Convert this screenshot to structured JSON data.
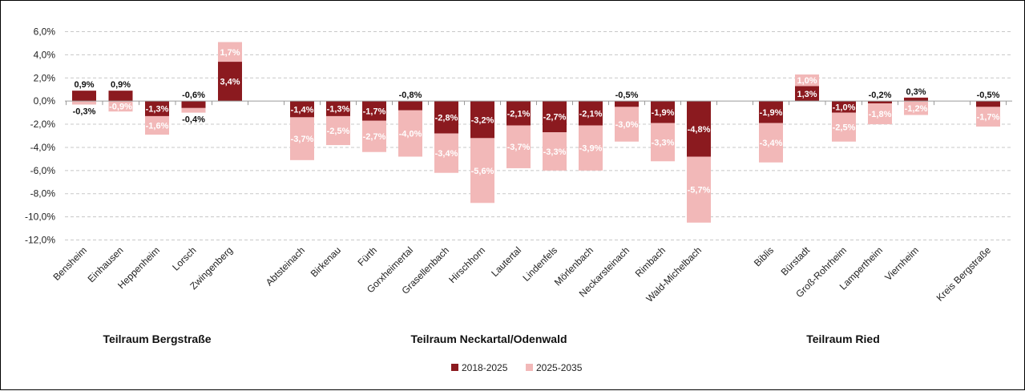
{
  "chart_data": {
    "type": "bar",
    "stacked": true,
    "title": "",
    "xlabel": "",
    "ylabel": "",
    "ylim": [
      -12,
      6
    ],
    "y_ticks": [
      "6,0%",
      "4,0%",
      "2,0%",
      "0,0%",
      "-2,0%",
      "-4,0%",
      "-6,0%",
      "-8,0%",
      "-10,0%",
      "-12,0%"
    ],
    "grid": true,
    "legend_position": "bottom",
    "categories": [
      "Bensheim",
      "Einhausen",
      "Heppenheim",
      "Lorsch",
      "Zwingenberg",
      "Abtsteinach",
      "Birkenau",
      "Fürth",
      "Gorxheimertal",
      "Grasellenbach",
      "Hirschhorn",
      "Lautertal",
      "Lindenfels",
      "Mörlenbach",
      "Neckarsteinach",
      "Rimbach",
      "Wald-Michelbach",
      "Biblis",
      "Bürstadt",
      "Groß-Rohrheim",
      "Lampertheim",
      "Viernheim",
      "Kreis Bergstraße"
    ],
    "series": [
      {
        "name": "2018-2025",
        "color": "#8b1a1f",
        "values": [
          0.9,
          0.9,
          -1.3,
          -0.6,
          3.4,
          -1.4,
          -1.3,
          -1.7,
          -0.8,
          -2.8,
          -3.2,
          -2.1,
          -2.7,
          -2.1,
          -0.5,
          -1.9,
          -4.8,
          -1.9,
          1.3,
          -1.0,
          -0.2,
          0.3,
          -0.5
        ],
        "labels": [
          "0,9%",
          "0,9%",
          "-1,3%",
          "-0,6%",
          "3,4%",
          "-1,4%",
          "-1,3%",
          "-1,7%",
          "-0,8%",
          "-2,8%",
          "-3,2%",
          "-2,1%",
          "-2,7%",
          "-2,1%",
          "-0,5%",
          "-1,9%",
          "-4,8%",
          "-1,9%",
          "1,3%",
          "-1,0%",
          "-0,2%",
          "0,3%",
          "-0,5%"
        ]
      },
      {
        "name": "2025-2035",
        "color": "#f2b8b8",
        "values": [
          -0.3,
          -0.9,
          -1.6,
          -0.4,
          1.7,
          -3.7,
          -2.5,
          -2.7,
          -4.0,
          -3.4,
          -5.6,
          -3.7,
          -3.3,
          -3.9,
          -3.0,
          -3.3,
          -5.7,
          -3.4,
          1.0,
          -2.5,
          -1.8,
          -1.2,
          -1.7
        ],
        "labels": [
          "-0,3%",
          "-0,9%",
          "-1,6%",
          "-0,4%",
          "1,7%",
          "-3,7%",
          "-2,5%",
          "-2,7%",
          "-4,0%",
          "-3,4%",
          "-5,6%",
          "-3,7%",
          "-3,3%",
          "-3,9%",
          "-3,0%",
          "-3,3%",
          "-5,7%",
          "-3,4%",
          "1,0%",
          "-2,5%",
          "-1,8%",
          "-1,2%",
          "-1,7%"
        ]
      }
    ],
    "groups": [
      {
        "label": "Teilraum Bergstraße",
        "start": 0,
        "end": 4
      },
      {
        "label": "Teilraum Neckartal/Odenwald",
        "start": 5,
        "end": 16
      },
      {
        "label": "Teilraum Ried",
        "start": 17,
        "end": 21
      }
    ]
  }
}
